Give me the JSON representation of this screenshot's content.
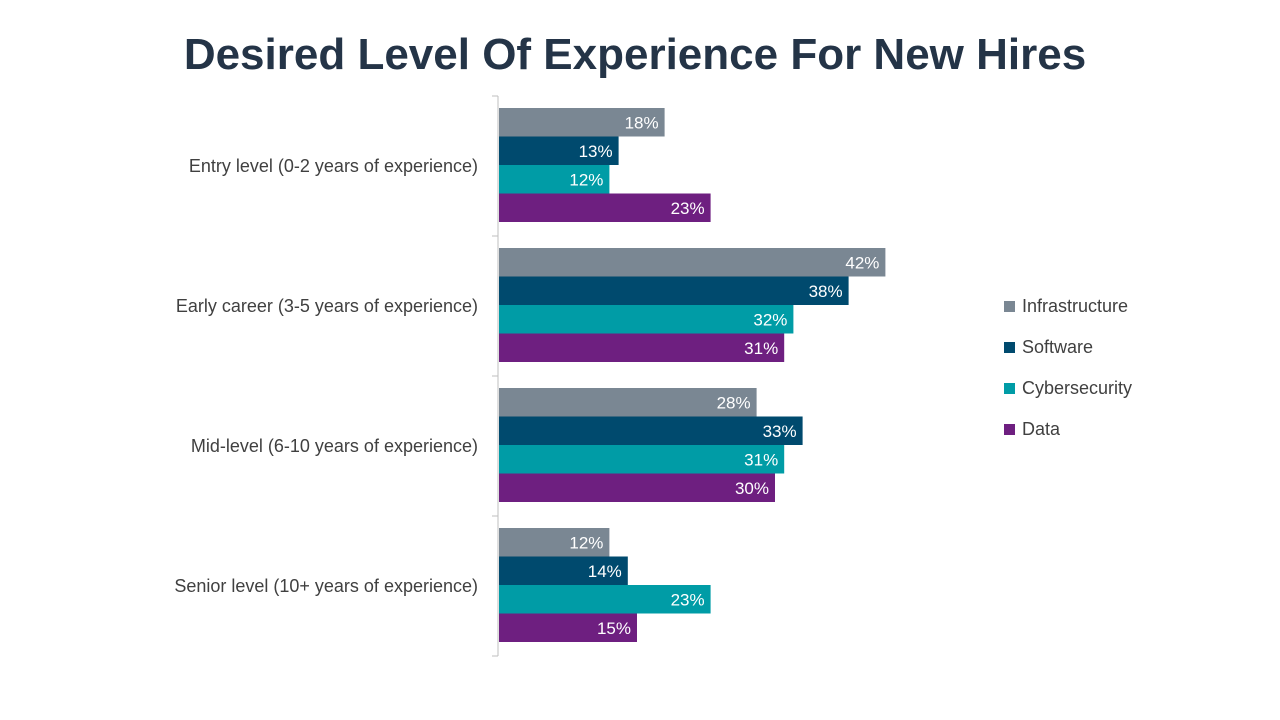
{
  "chart_data": {
    "type": "bar",
    "orientation": "horizontal",
    "title": "Desired Level Of Experience For New Hires",
    "categories": [
      "Entry level (0-2 years of experience)",
      "Early career (3-5 years of experience)",
      "Mid-level (6-10 years of experience)",
      "Senior level (10+ years of experience)"
    ],
    "series": [
      {
        "name": "Infrastructure",
        "color": "#7a8793",
        "values": [
          18,
          42,
          28,
          12
        ],
        "labels": [
          "18%",
          "42%",
          "28%",
          "12%"
        ]
      },
      {
        "name": "Software",
        "color": "#004a6e",
        "values": [
          13,
          38,
          33,
          14
        ],
        "labels": [
          "13%",
          "38%",
          "33%",
          "14%"
        ]
      },
      {
        "name": "Cybersecurity",
        "color": "#009ca6",
        "values": [
          12,
          32,
          31,
          23
        ],
        "labels": [
          "12%",
          "32%",
          "31%",
          "23%"
        ]
      },
      {
        "name": "Data",
        "color": "#6e1f80",
        "values": [
          23,
          31,
          30,
          15
        ],
        "labels": [
          "23%",
          "31%",
          "30%",
          "15%"
        ]
      }
    ],
    "value_unit": "%",
    "xlim": [
      0,
      100
    ],
    "grid": false,
    "legend_position": "right"
  }
}
